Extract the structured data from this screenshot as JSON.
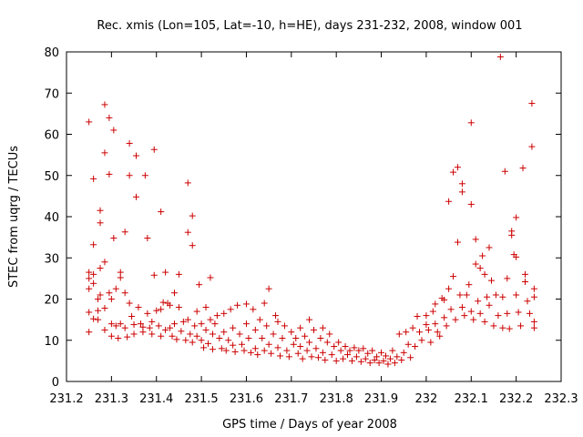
{
  "chart_data": {
    "type": "scatter",
    "title": "Rec. xmis (Lon=105, Lat=-10, h=HE), days 231-232, 2008, window 001",
    "xlabel": "GPS time / Days of year 2008",
    "ylabel": "STEC from uqrg / TECUs",
    "xlim": [
      231.2,
      232.3
    ],
    "ylim": [
      0,
      80
    ],
    "xticks": [
      "231.2",
      "231.3",
      "231.4",
      "231.5",
      "231.6",
      "231.7",
      "231.8",
      "231.9",
      "232",
      "232.1",
      "232.2",
      "232.3"
    ],
    "yticks": [
      "0",
      "10",
      "20",
      "30",
      "40",
      "50",
      "60",
      "70",
      "80"
    ],
    "grid": false,
    "legend": "none",
    "marker": "plus",
    "marker_color": "#cc0000",
    "series": [
      {
        "points": [
          [
            231.25,
            63
          ],
          [
            231.25,
            26.5
          ],
          [
            231.25,
            25
          ],
          [
            231.25,
            22.5
          ],
          [
            231.25,
            16.8
          ],
          [
            231.25,
            12
          ],
          [
            231.26,
            49.2
          ],
          [
            231.26,
            33.2
          ],
          [
            231.26,
            26
          ],
          [
            231.26,
            23.8
          ],
          [
            231.26,
            15.2
          ],
          [
            231.27,
            15
          ],
          [
            231.27,
            20
          ],
          [
            231.27,
            17.2
          ],
          [
            231.275,
            38.5
          ],
          [
            231.275,
            41.5
          ],
          [
            231.275,
            27.5
          ],
          [
            231.275,
            21
          ],
          [
            231.285,
            67.2
          ],
          [
            231.285,
            55.5
          ],
          [
            231.285,
            29
          ],
          [
            231.285,
            17.8
          ],
          [
            231.285,
            12.5
          ],
          [
            231.295,
            64
          ],
          [
            231.295,
            50.3
          ],
          [
            231.295,
            21.5
          ],
          [
            231.3,
            20
          ],
          [
            231.3,
            14
          ],
          [
            231.3,
            11
          ],
          [
            231.305,
            61
          ],
          [
            231.305,
            34.8
          ],
          [
            231.31,
            22.5
          ],
          [
            231.31,
            13.5
          ],
          [
            231.315,
            10.5
          ],
          [
            231.32,
            26.5
          ],
          [
            231.32,
            25.2
          ],
          [
            231.32,
            14
          ],
          [
            231.33,
            36.3
          ],
          [
            231.33,
            21.5
          ],
          [
            231.33,
            13
          ],
          [
            231.335,
            10.8
          ],
          [
            231.34,
            57.8
          ],
          [
            231.34,
            50
          ],
          [
            231.34,
            19
          ],
          [
            231.345,
            15.8
          ],
          [
            231.35,
            13.8
          ],
          [
            231.35,
            11.5
          ],
          [
            231.355,
            54.8
          ],
          [
            231.355,
            44.8
          ],
          [
            231.36,
            18
          ],
          [
            231.365,
            14
          ],
          [
            231.37,
            13.2
          ],
          [
            231.37,
            12
          ],
          [
            231.375,
            50
          ],
          [
            231.38,
            34.8
          ],
          [
            231.38,
            16.5
          ],
          [
            231.385,
            13
          ],
          [
            231.39,
            14.5
          ],
          [
            231.39,
            11.5
          ],
          [
            231.395,
            56.3
          ],
          [
            231.395,
            25.8
          ],
          [
            231.4,
            17.2
          ],
          [
            231.405,
            13.5
          ],
          [
            231.41,
            41.2
          ],
          [
            231.41,
            17.5
          ],
          [
            231.41,
            11
          ],
          [
            231.415,
            19.2
          ],
          [
            231.42,
            26.5
          ],
          [
            231.42,
            12.5
          ],
          [
            231.425,
            19
          ],
          [
            231.43,
            18.5
          ],
          [
            231.43,
            13
          ],
          [
            231.435,
            11
          ],
          [
            231.44,
            21.5
          ],
          [
            231.44,
            14
          ],
          [
            231.445,
            10.2
          ],
          [
            231.45,
            26
          ],
          [
            231.45,
            18
          ],
          [
            231.455,
            12.2
          ],
          [
            231.46,
            14.5
          ],
          [
            231.465,
            10
          ],
          [
            231.47,
            48.2
          ],
          [
            231.47,
            36.2
          ],
          [
            231.47,
            15
          ],
          [
            231.475,
            11.5
          ],
          [
            231.48,
            40.2
          ],
          [
            231.48,
            33
          ],
          [
            231.48,
            9.5
          ],
          [
            231.485,
            13.5
          ],
          [
            231.49,
            17
          ],
          [
            231.49,
            11
          ],
          [
            231.495,
            23.5
          ],
          [
            231.5,
            14
          ],
          [
            231.5,
            10
          ],
          [
            231.505,
            8.2
          ],
          [
            231.51,
            18
          ],
          [
            231.51,
            12.5
          ],
          [
            231.515,
            9.2
          ],
          [
            231.52,
            25.2
          ],
          [
            231.52,
            15
          ],
          [
            231.525,
            11.5
          ],
          [
            231.525,
            7.8
          ],
          [
            231.53,
            14
          ],
          [
            231.535,
            16
          ],
          [
            231.54,
            10.5
          ],
          [
            231.545,
            8
          ],
          [
            231.55,
            16.5
          ],
          [
            231.55,
            12
          ],
          [
            231.555,
            7.5
          ],
          [
            231.56,
            10
          ],
          [
            231.565,
            17.5
          ],
          [
            231.57,
            13
          ],
          [
            231.57,
            8.8
          ],
          [
            231.575,
            7.2
          ],
          [
            231.58,
            18.5
          ],
          [
            231.585,
            11.5
          ],
          [
            231.59,
            9
          ],
          [
            231.595,
            7.5
          ],
          [
            231.6,
            18.8
          ],
          [
            231.6,
            14
          ],
          [
            231.605,
            10.5
          ],
          [
            231.61,
            7
          ],
          [
            231.615,
            17.5
          ],
          [
            231.62,
            12.5
          ],
          [
            231.62,
            8
          ],
          [
            231.625,
            6.5
          ],
          [
            231.63,
            15
          ],
          [
            231.635,
            10.5
          ],
          [
            231.64,
            19
          ],
          [
            231.64,
            7.5
          ],
          [
            231.645,
            13.5
          ],
          [
            231.65,
            22.5
          ],
          [
            231.65,
            9
          ],
          [
            231.655,
            6.8
          ],
          [
            231.66,
            11.5
          ],
          [
            231.665,
            16
          ],
          [
            231.67,
            14.5
          ],
          [
            231.67,
            8.2
          ],
          [
            231.675,
            6.2
          ],
          [
            231.68,
            10.5
          ],
          [
            231.685,
            13.5
          ],
          [
            231.69,
            7.5
          ],
          [
            231.695,
            6
          ],
          [
            231.7,
            12
          ],
          [
            231.705,
            9
          ],
          [
            231.71,
            10.5
          ],
          [
            231.715,
            6.8
          ],
          [
            231.72,
            13
          ],
          [
            231.72,
            8.5
          ],
          [
            231.725,
            5.5
          ],
          [
            231.73,
            11
          ],
          [
            231.735,
            7.5
          ],
          [
            231.74,
            15
          ],
          [
            231.74,
            9.5
          ],
          [
            231.745,
            6
          ],
          [
            231.75,
            12.5
          ],
          [
            231.755,
            8
          ],
          [
            231.76,
            5.8
          ],
          [
            231.765,
            10.5
          ],
          [
            231.77,
            13
          ],
          [
            231.77,
            7
          ],
          [
            231.775,
            5.2
          ],
          [
            231.78,
            9.5
          ],
          [
            231.785,
            11.5
          ],
          [
            231.79,
            6.5
          ],
          [
            231.795,
            8.5
          ],
          [
            231.8,
            5
          ],
          [
            231.805,
            9.5
          ],
          [
            231.81,
            7.5
          ],
          [
            231.815,
            5.5
          ],
          [
            231.82,
            8.5
          ],
          [
            231.825,
            6.5
          ],
          [
            231.83,
            7.5
          ],
          [
            231.835,
            5
          ],
          [
            231.84,
            8.2
          ],
          [
            231.845,
            6
          ],
          [
            231.85,
            7.5
          ],
          [
            231.855,
            4.8
          ],
          [
            231.86,
            8
          ],
          [
            231.865,
            5.5
          ],
          [
            231.87,
            6.8
          ],
          [
            231.875,
            4.5
          ],
          [
            231.88,
            7.5
          ],
          [
            231.885,
            5.2
          ],
          [
            231.89,
            6
          ],
          [
            231.895,
            4.5
          ],
          [
            231.9,
            7
          ],
          [
            231.905,
            5
          ],
          [
            231.91,
            6.2
          ],
          [
            231.915,
            4.2
          ],
          [
            231.92,
            5.5
          ],
          [
            231.925,
            7.5
          ],
          [
            231.93,
            4.5
          ],
          [
            231.935,
            6
          ],
          [
            231.94,
            11.5
          ],
          [
            231.945,
            5.2
          ],
          [
            231.95,
            7
          ],
          [
            231.955,
            12
          ],
          [
            231.96,
            9
          ],
          [
            231.965,
            5.8
          ],
          [
            231.97,
            13
          ],
          [
            231.975,
            8.5
          ],
          [
            231.98,
            15.8
          ],
          [
            231.985,
            12
          ],
          [
            231.99,
            10
          ],
          [
            232.0,
            16
          ],
          [
            232.0,
            13.8
          ],
          [
            232.005,
            12.5
          ],
          [
            232.01,
            9.5
          ],
          [
            232.015,
            17
          ],
          [
            232.02,
            18.8
          ],
          [
            232.02,
            14
          ],
          [
            232.025,
            12
          ],
          [
            232.03,
            11
          ],
          [
            232.035,
            20.2
          ],
          [
            232.04,
            19.8
          ],
          [
            232.04,
            15.5
          ],
          [
            232.045,
            13.5
          ],
          [
            232.05,
            43.7
          ],
          [
            232.05,
            22.5
          ],
          [
            232.055,
            17.5
          ],
          [
            232.06,
            50.8
          ],
          [
            232.06,
            25.5
          ],
          [
            232.065,
            15
          ],
          [
            232.07,
            52
          ],
          [
            232.07,
            33.8
          ],
          [
            232.075,
            21
          ],
          [
            232.08,
            48
          ],
          [
            232.08,
            46
          ],
          [
            232.08,
            18
          ],
          [
            232.085,
            16
          ],
          [
            232.09,
            21
          ],
          [
            232.095,
            23.5
          ],
          [
            232.1,
            62.8
          ],
          [
            232.1,
            43
          ],
          [
            232.1,
            17
          ],
          [
            232.105,
            15
          ],
          [
            232.11,
            34.5
          ],
          [
            232.11,
            28.5
          ],
          [
            232.115,
            19.5
          ],
          [
            232.12,
            27.5
          ],
          [
            232.12,
            16.5
          ],
          [
            232.125,
            30.5
          ],
          [
            232.13,
            26
          ],
          [
            232.13,
            14.5
          ],
          [
            232.135,
            20.5
          ],
          [
            232.14,
            32.5
          ],
          [
            232.14,
            18.5
          ],
          [
            232.145,
            24.5
          ],
          [
            232.15,
            13.5
          ],
          [
            232.155,
            21
          ],
          [
            232.16,
            16
          ],
          [
            232.165,
            78.8
          ],
          [
            232.17,
            20.5
          ],
          [
            232.17,
            13
          ],
          [
            232.175,
            51
          ],
          [
            232.18,
            25
          ],
          [
            232.18,
            16.5
          ],
          [
            232.185,
            12.8
          ],
          [
            232.19,
            36.5
          ],
          [
            232.19,
            35.5
          ],
          [
            232.195,
            30.8
          ],
          [
            232.2,
            39.8
          ],
          [
            232.2,
            30.2
          ],
          [
            232.2,
            21
          ],
          [
            232.205,
            16.8
          ],
          [
            232.21,
            13.5
          ],
          [
            232.215,
            51.8
          ],
          [
            232.22,
            26
          ],
          [
            232.22,
            24.2
          ],
          [
            232.225,
            19.5
          ],
          [
            232.23,
            16.5
          ],
          [
            232.235,
            67.5
          ],
          [
            232.235,
            57
          ],
          [
            232.24,
            22.5
          ],
          [
            232.24,
            20.5
          ],
          [
            232.24,
            14.5
          ],
          [
            232.24,
            13
          ]
        ]
      }
    ]
  }
}
